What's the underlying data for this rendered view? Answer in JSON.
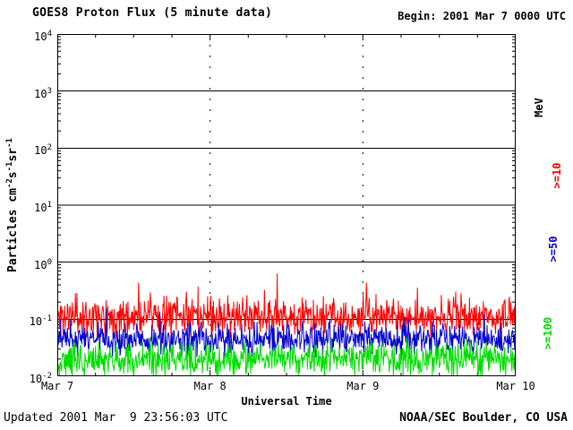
{
  "header": {
    "title": "GOES8 Proton Flux (5 minute data)",
    "begin": "Begin: 2001 Mar 7 0000 UTC"
  },
  "footer": {
    "updated": "Updated 2001 Mar  9 23:56:03 UTC",
    "source": "NOAA/SEC Boulder, CO USA"
  },
  "labels": {
    "ylabel_parts": [
      {
        "t": "Particles cm"
      },
      {
        "sup": "-2"
      },
      {
        "t": "s"
      },
      {
        "sup": "-1"
      },
      {
        "t": "sr"
      },
      {
        "sup": "-1"
      }
    ]
  },
  "chart_data": {
    "type": "line",
    "title": "GOES8 Proton Flux (5 minute data)",
    "xlabel": "Universal Time",
    "right_axis_label": "MeV",
    "x_ticks": [
      "Mar 7",
      "Mar 8",
      "Mar 9",
      "Mar 10"
    ],
    "x_range_days": 3,
    "points_per_day": 288,
    "ylim_log10": [
      -2,
      4
    ],
    "y_exponents": [
      4,
      3,
      2,
      1,
      0,
      -1,
      -2
    ],
    "grid": "solid horizontal lines at each decade, dotted vertical lines at day boundaries",
    "representation": "stochastic_noise_approximation of 5-minute flux traces",
    "series": [
      {
        "name": ">=10",
        "color": "#ff0000",
        "log10_mean": -0.95,
        "log10_spread": 0.33,
        "spike_prob": 0.03,
        "spike_add": 0.55,
        "approx_flux_band": "0.05 to 0.6",
        "seed": 11
      },
      {
        "name": ">=50",
        "color": "#0000cc",
        "log10_mean": -1.35,
        "log10_spread": 0.27,
        "spike_prob": 0.02,
        "spike_add": 0.35,
        "approx_flux_band": "0.02 to 0.12",
        "seed": 97
      },
      {
        "name": ">=100",
        "color": "#00dd00",
        "log10_mean": -1.7,
        "log10_spread": 0.3,
        "spike_prob": 0.02,
        "spike_add": 0.35,
        "approx_flux_band": "0.01 to 0.06",
        "seed": 55
      }
    ]
  }
}
